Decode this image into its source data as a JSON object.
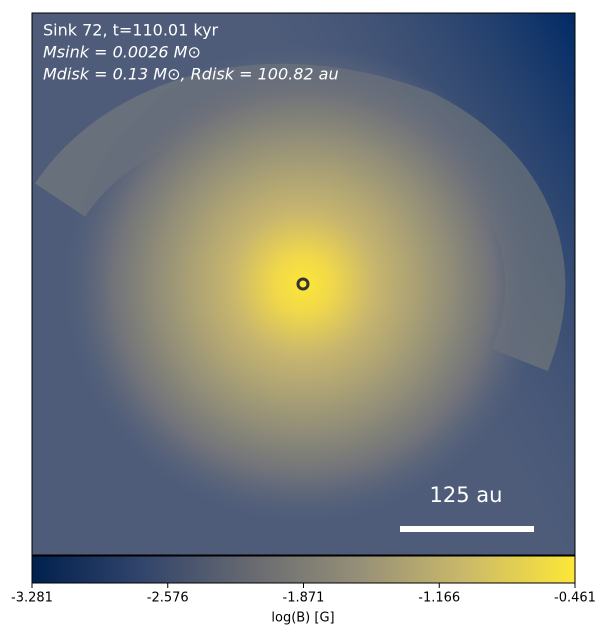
{
  "chart_data": {
    "type": "image",
    "annotations": [
      "Sink 72, t=110.01 kyr",
      "Msink = 0.0026 M⊙",
      "Mdisk = 0.13 M⊙, Rdisk = 100.82 au"
    ],
    "scale_bar_label": "125 au",
    "colorbar_label": "log(B) [G]",
    "clim": [
      -3.281,
      -0.461
    ],
    "cticks": [
      -3.281,
      -2.576,
      -1.871,
      -1.166,
      -0.461
    ],
    "colors": [
      "#00204d",
      "#31446b",
      "#666970",
      "#958f78",
      "#cbba69",
      "#fde737"
    ]
  }
}
